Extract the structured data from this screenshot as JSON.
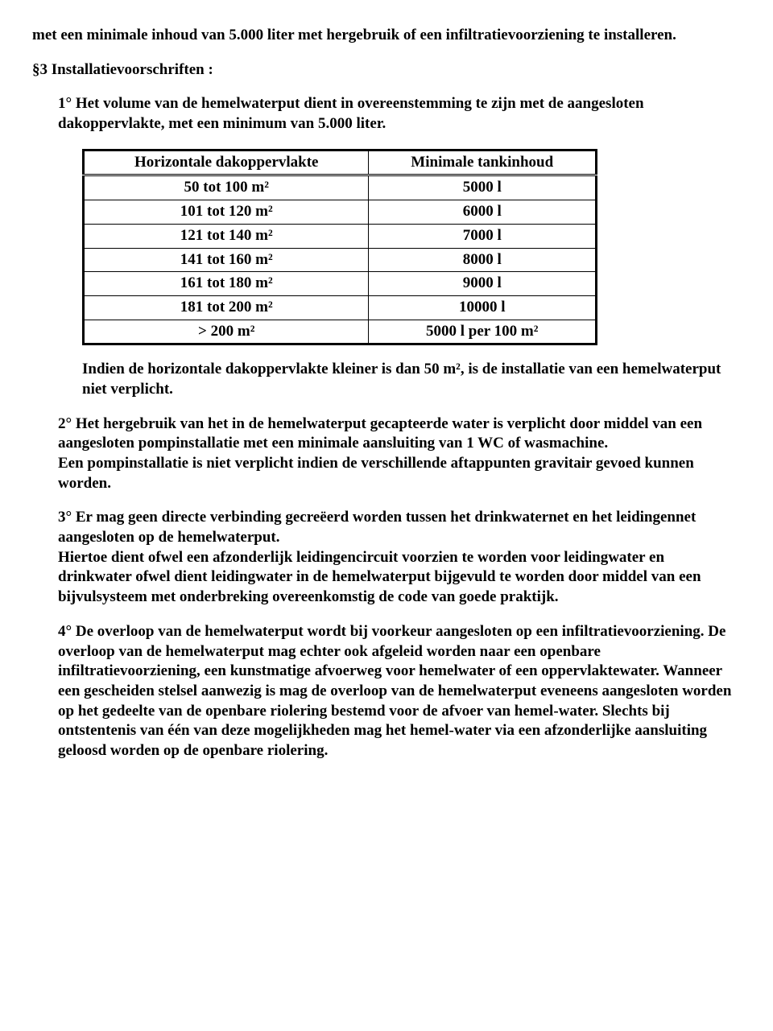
{
  "intro": "met een minimale inhoud van 5.000 liter met hergebruik of een infiltratievoorziening te installeren.",
  "section3_title": "§3  Installatievoorschriften :",
  "point1_text": "1°  Het volume van de hemelwaterput dient in overeenstemming te zijn met de aangesloten dakoppervlakte, met een minimum van 5.000 liter.",
  "table": {
    "col1_header": "Horizontale dakoppervlakte",
    "col2_header": "Minimale tankinhoud",
    "rows": [
      {
        "c1": "50 tot 100 m²",
        "c2": "5000 l"
      },
      {
        "c1": "101 tot 120 m²",
        "c2": "6000 l"
      },
      {
        "c1": "121 tot 140 m²",
        "c2": "7000 l"
      },
      {
        "c1": "141 tot 160 m²",
        "c2": "8000 l"
      },
      {
        "c1": "161 tot 180 m²",
        "c2": "9000 l"
      },
      {
        "c1": "181 tot 200 m²",
        "c2": "10000 l"
      },
      {
        "c1": "> 200 m²",
        "c2": "5000 l per 100 m²"
      }
    ],
    "border_color": "#000000",
    "font_size_pt": 14,
    "cell_align": "center"
  },
  "point1_after": "Indien de horizontale dakoppervlakte kleiner is dan 50 m², is de installatie van een hemelwaterput niet verplicht.",
  "point2_p1": "2°  Het hergebruik van het in de hemelwaterput gecapteerde water is verplicht door middel van een aangesloten pompinstallatie met een minimale aansluiting van 1 WC of wasmachine.",
  "point2_p2": "Een pompinstallatie is niet verplicht indien de verschillende aftappunten gravitair gevoed kunnen worden.",
  "point3_p1": "3°  Er mag geen directe verbinding gecreëerd worden tussen het drinkwaternet en het leidingennet aangesloten op de hemelwaterput.",
  "point3_p2": "Hiertoe dient ofwel een afzonderlijk leidingencircuit voorzien te worden voor leidingwater en drinkwater ofwel dient leidingwater in de hemelwaterput bijgevuld te worden door middel van een bijvulsysteem met onderbreking overeenkomstig de code van goede praktijk.",
  "point4": "4°  De overloop van de hemelwaterput wordt bij voorkeur aangesloten op een infiltratievoorziening. De overloop van de hemelwaterput mag echter ook afgeleid worden naar een openbare infiltratievoorziening, een kunstmatige afvoerweg voor hemelwater of een oppervlaktewater. Wanneer een gescheiden stelsel aanwezig is mag de overloop van de hemelwaterput eveneens aangesloten worden op het gedeelte van de openbare riolering bestemd voor de afvoer van hemel-water. Slechts bij ontstentenis van één van deze mogelijkheden mag het hemel-water via een afzonderlijke aansluiting geloosd worden op de openbare riolering."
}
